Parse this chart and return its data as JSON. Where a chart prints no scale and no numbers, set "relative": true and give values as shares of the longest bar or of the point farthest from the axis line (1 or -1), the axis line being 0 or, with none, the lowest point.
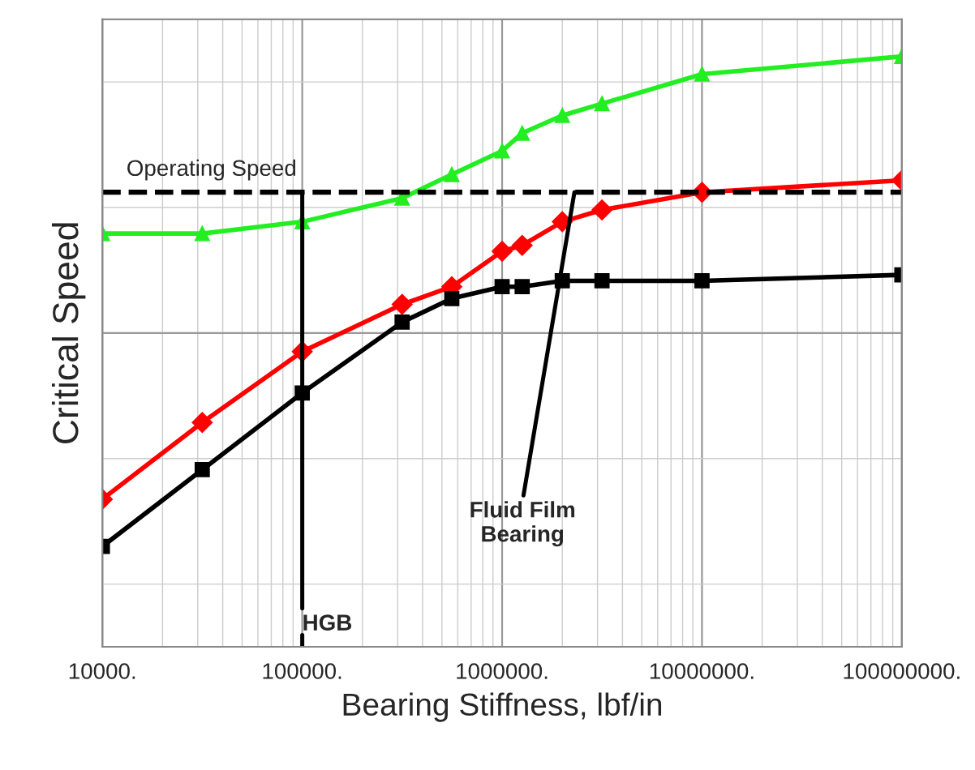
{
  "chart_data": {
    "type": "line",
    "relative": true,
    "log": "x",
    "grid": true,
    "line_style": "solid",
    "xlabel": "Bearing Stiffness, lbf/in",
    "ylabel": "Critical Speed",
    "xlim": [
      10000,
      100000000
    ],
    "xticks": [
      {
        "value": 10000,
        "label": "10000."
      },
      {
        "value": 100000,
        "label": "100000."
      },
      {
        "value": 1000000,
        "label": "1000000."
      },
      {
        "value": 10000000,
        "label": "10000000."
      },
      {
        "value": 100000000,
        "label": "100000000."
      }
    ],
    "x": [
      10000,
      31600,
      100000,
      316000,
      560000,
      1000000,
      1260000,
      2000000,
      3160000,
      10000000,
      100000000
    ],
    "series": [
      {
        "color": "#22ee22",
        "marker": "triangle",
        "values": [
          0.7,
          0.7,
          0.72,
          0.76,
          0.8,
          0.84,
          0.87,
          0.9,
          0.92,
          0.97,
          1.0
        ]
      },
      {
        "color": "#ff0000",
        "marker": "diamond",
        "values": [
          0.25,
          0.38,
          0.5,
          0.58,
          0.61,
          0.67,
          0.68,
          0.72,
          0.74,
          0.77,
          0.79
        ]
      },
      {
        "color": "#000000",
        "marker": "square",
        "values": [
          0.17,
          0.3,
          0.43,
          0.55,
          0.59,
          0.61,
          0.61,
          0.62,
          0.62,
          0.62,
          0.63
        ]
      }
    ],
    "ref_lines": [
      {
        "axis": "y",
        "value": 0.77,
        "label": "Operating Speed",
        "color": "#000000",
        "line_style": "dashed"
      }
    ],
    "annotations": [
      {
        "text": "HGB",
        "x": 100000,
        "y": 0.77
      },
      {
        "text": "Fluid Film\nBearing",
        "x": 2300000,
        "y": 0.77
      }
    ]
  }
}
